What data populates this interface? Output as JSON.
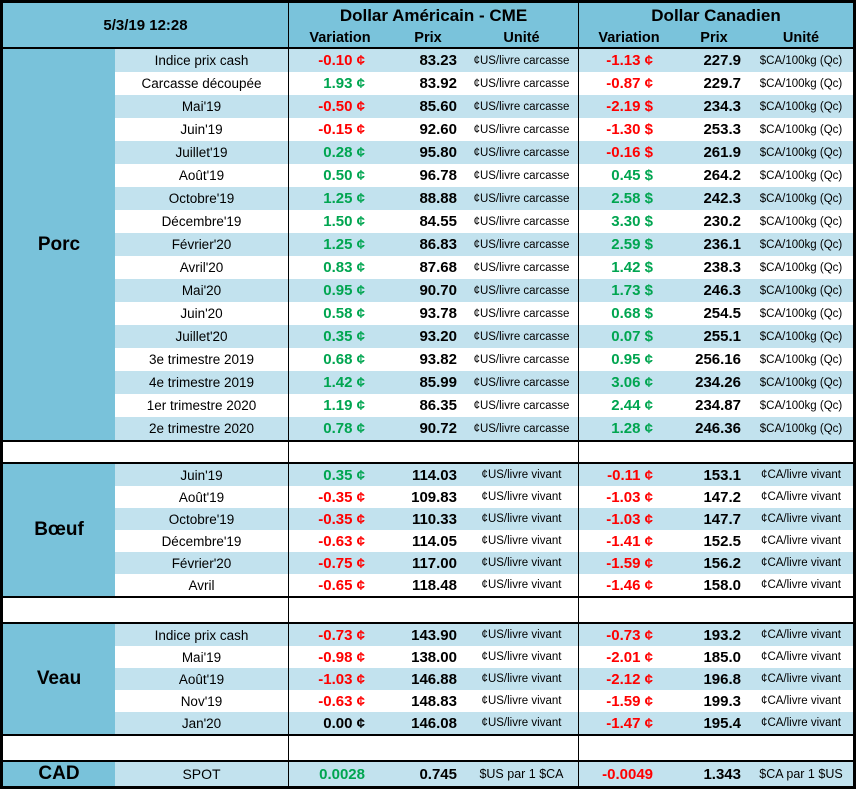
{
  "meta": {
    "datetime": "5/3/19 12:28"
  },
  "header": {
    "us_group": {
      "title": "Dollar Américain - CME",
      "col_variation": "Variation",
      "col_prix": "Prix",
      "col_unite": "Unité"
    },
    "ca_group": {
      "title": "Dollar Canadien",
      "col_variation": "Variation",
      "col_prix": "Prix",
      "col_unite": "Unité"
    }
  },
  "colors": {
    "header_blue": "#79C2DA",
    "row_blue": "#C2E2EE",
    "positive_green": "#00A550",
    "negative_red": "#FF0000",
    "neutral_black": "#000000"
  },
  "sections": [
    {
      "name": "Porc",
      "rows": [
        {
          "label": "Indice prix cash",
          "us_variation": "-0.10 ¢",
          "us_prix": "83.23",
          "us_unit": "¢US/livre carcasse",
          "ca_variation": "-1.13 ¢",
          "ca_prix": "227.9",
          "ca_unit": "$CA/100kg (Qc)"
        },
        {
          "label": "Carcasse découpée",
          "us_variation": "1.93 ¢",
          "us_prix": "83.92",
          "us_unit": "¢US/livre carcasse",
          "ca_variation": "-0.87 ¢",
          "ca_prix": "229.7",
          "ca_unit": "$CA/100kg (Qc)"
        },
        {
          "label": "Mai'19",
          "us_variation": "-0.50 ¢",
          "us_prix": "85.60",
          "us_unit": "¢US/livre carcasse",
          "ca_variation": "-2.19 $",
          "ca_prix": "234.3",
          "ca_unit": "$CA/100kg (Qc)"
        },
        {
          "label": "Juin'19",
          "us_variation": "-0.15 ¢",
          "us_prix": "92.60",
          "us_unit": "¢US/livre carcasse",
          "ca_variation": "-1.30 $",
          "ca_prix": "253.3",
          "ca_unit": "$CA/100kg (Qc)"
        },
        {
          "label": "Juillet'19",
          "us_variation": "0.28 ¢",
          "us_prix": "95.80",
          "us_unit": "¢US/livre carcasse",
          "ca_variation": "-0.16 $",
          "ca_prix": "261.9",
          "ca_unit": "$CA/100kg (Qc)"
        },
        {
          "label": "Août'19",
          "us_variation": "0.50 ¢",
          "us_prix": "96.78",
          "us_unit": "¢US/livre carcasse",
          "ca_variation": "0.45 $",
          "ca_prix": "264.2",
          "ca_unit": "$CA/100kg (Qc)"
        },
        {
          "label": "Octobre'19",
          "us_variation": "1.25 ¢",
          "us_prix": "88.88",
          "us_unit": "¢US/livre carcasse",
          "ca_variation": "2.58 $",
          "ca_prix": "242.3",
          "ca_unit": "$CA/100kg (Qc)"
        },
        {
          "label": "Décembre'19",
          "us_variation": "1.50 ¢",
          "us_prix": "84.55",
          "us_unit": "¢US/livre carcasse",
          "ca_variation": "3.30 $",
          "ca_prix": "230.2",
          "ca_unit": "$CA/100kg (Qc)"
        },
        {
          "label": "Février'20",
          "us_variation": "1.25 ¢",
          "us_prix": "86.83",
          "us_unit": "¢US/livre carcasse",
          "ca_variation": "2.59 $",
          "ca_prix": "236.1",
          "ca_unit": "$CA/100kg (Qc)"
        },
        {
          "label": "Avril'20",
          "us_variation": "0.83 ¢",
          "us_prix": "87.68",
          "us_unit": "¢US/livre carcasse",
          "ca_variation": "1.42 $",
          "ca_prix": "238.3",
          "ca_unit": "$CA/100kg (Qc)"
        },
        {
          "label": "Mai'20",
          "us_variation": "0.95 ¢",
          "us_prix": "90.70",
          "us_unit": "¢US/livre carcasse",
          "ca_variation": "1.73 $",
          "ca_prix": "246.3",
          "ca_unit": "$CA/100kg (Qc)"
        },
        {
          "label": "Juin'20",
          "us_variation": "0.58 ¢",
          "us_prix": "93.78",
          "us_unit": "¢US/livre carcasse",
          "ca_variation": "0.68 $",
          "ca_prix": "254.5",
          "ca_unit": "$CA/100kg (Qc)"
        },
        {
          "label": "Juillet'20",
          "us_variation": "0.35 ¢",
          "us_prix": "93.20",
          "us_unit": "¢US/livre carcasse",
          "ca_variation": "0.07 $",
          "ca_prix": "255.1",
          "ca_unit": "$CA/100kg (Qc)"
        },
        {
          "label": "3e trimestre 2019",
          "us_variation": "0.68 ¢",
          "us_prix": "93.82",
          "us_unit": "¢US/livre carcasse",
          "ca_variation": "0.95 ¢",
          "ca_prix": "256.16",
          "ca_unit": "$CA/100kg (Qc)"
        },
        {
          "label": "4e trimestre 2019",
          "us_variation": "1.42 ¢",
          "us_prix": "85.99",
          "us_unit": "¢US/livre carcasse",
          "ca_variation": "3.06 ¢",
          "ca_prix": "234.26",
          "ca_unit": "$CA/100kg (Qc)"
        },
        {
          "label": "1er trimestre 2020",
          "us_variation": "1.19 ¢",
          "us_prix": "86.35",
          "us_unit": "¢US/livre carcasse",
          "ca_variation": "2.44 ¢",
          "ca_prix": "234.87",
          "ca_unit": "$CA/100kg (Qc)"
        },
        {
          "label": "2e trimestre 2020",
          "us_variation": "0.78 ¢",
          "us_prix": "90.72",
          "us_unit": "¢US/livre carcasse",
          "ca_variation": "1.28 ¢",
          "ca_prix": "246.36",
          "ca_unit": "$CA/100kg (Qc)"
        }
      ]
    },
    {
      "name": "Bœuf",
      "rows": [
        {
          "label": "Juin'19",
          "us_variation": "0.35 ¢",
          "us_prix": "114.03",
          "us_unit": "¢US/livre vivant",
          "ca_variation": "-0.11 ¢",
          "ca_prix": "153.1",
          "ca_unit": "¢CA/livre vivant"
        },
        {
          "label": "Août'19",
          "us_variation": "-0.35 ¢",
          "us_prix": "109.83",
          "us_unit": "¢US/livre vivant",
          "ca_variation": "-1.03 ¢",
          "ca_prix": "147.2",
          "ca_unit": "¢CA/livre vivant"
        },
        {
          "label": "Octobre'19",
          "us_variation": "-0.35 ¢",
          "us_prix": "110.33",
          "us_unit": "¢US/livre vivant",
          "ca_variation": "-1.03 ¢",
          "ca_prix": "147.7",
          "ca_unit": "¢CA/livre vivant"
        },
        {
          "label": "Décembre'19",
          "us_variation": "-0.63 ¢",
          "us_prix": "114.05",
          "us_unit": "¢US/livre vivant",
          "ca_variation": "-1.41 ¢",
          "ca_prix": "152.5",
          "ca_unit": "¢CA/livre vivant"
        },
        {
          "label": "Février'20",
          "us_variation": "-0.75 ¢",
          "us_prix": "117.00",
          "us_unit": "¢US/livre vivant",
          "ca_variation": "-1.59 ¢",
          "ca_prix": "156.2",
          "ca_unit": "¢CA/livre vivant"
        },
        {
          "label": "Avril",
          "us_variation": "-0.65 ¢",
          "us_prix": "118.48",
          "us_unit": "¢US/livre vivant",
          "ca_variation": "-1.46 ¢",
          "ca_prix": "158.0",
          "ca_unit": "¢CA/livre vivant"
        }
      ]
    },
    {
      "name": "Veau",
      "rows": [
        {
          "label": "Indice prix cash",
          "us_variation": "-0.73 ¢",
          "us_prix": "143.90",
          "us_unit": "¢US/livre vivant",
          "ca_variation": "-0.73 ¢",
          "ca_prix": "193.2",
          "ca_unit": "¢CA/livre vivant"
        },
        {
          "label": "Mai'19",
          "us_variation": "-0.98 ¢",
          "us_prix": "138.00",
          "us_unit": "¢US/livre vivant",
          "ca_variation": "-2.01 ¢",
          "ca_prix": "185.0",
          "ca_unit": "¢CA/livre vivant"
        },
        {
          "label": "Août'19",
          "us_variation": "-1.03 ¢",
          "us_prix": "146.88",
          "us_unit": "¢US/livre vivant",
          "ca_variation": "-2.12 ¢",
          "ca_prix": "196.8",
          "ca_unit": "¢CA/livre vivant"
        },
        {
          "label": "Nov'19",
          "us_variation": "-0.63 ¢",
          "us_prix": "148.83",
          "us_unit": "¢US/livre vivant",
          "ca_variation": "-1.59 ¢",
          "ca_prix": "199.3",
          "ca_unit": "¢CA/livre vivant"
        },
        {
          "label": "Jan'20",
          "us_variation": "0.00 ¢",
          "us_prix": "146.08",
          "us_unit": "¢US/livre vivant",
          "ca_variation": "-1.47 ¢",
          "ca_prix": "195.4",
          "ca_unit": "¢CA/livre vivant"
        }
      ]
    },
    {
      "name": "CAD",
      "rows": [
        {
          "label": "SPOT",
          "us_variation": "0.0028",
          "us_prix": "0.745",
          "us_unit": "$US par 1 $CA",
          "ca_variation": "-0.0049",
          "ca_prix": "1.343",
          "ca_unit": "$CA par 1 $US"
        }
      ]
    }
  ]
}
